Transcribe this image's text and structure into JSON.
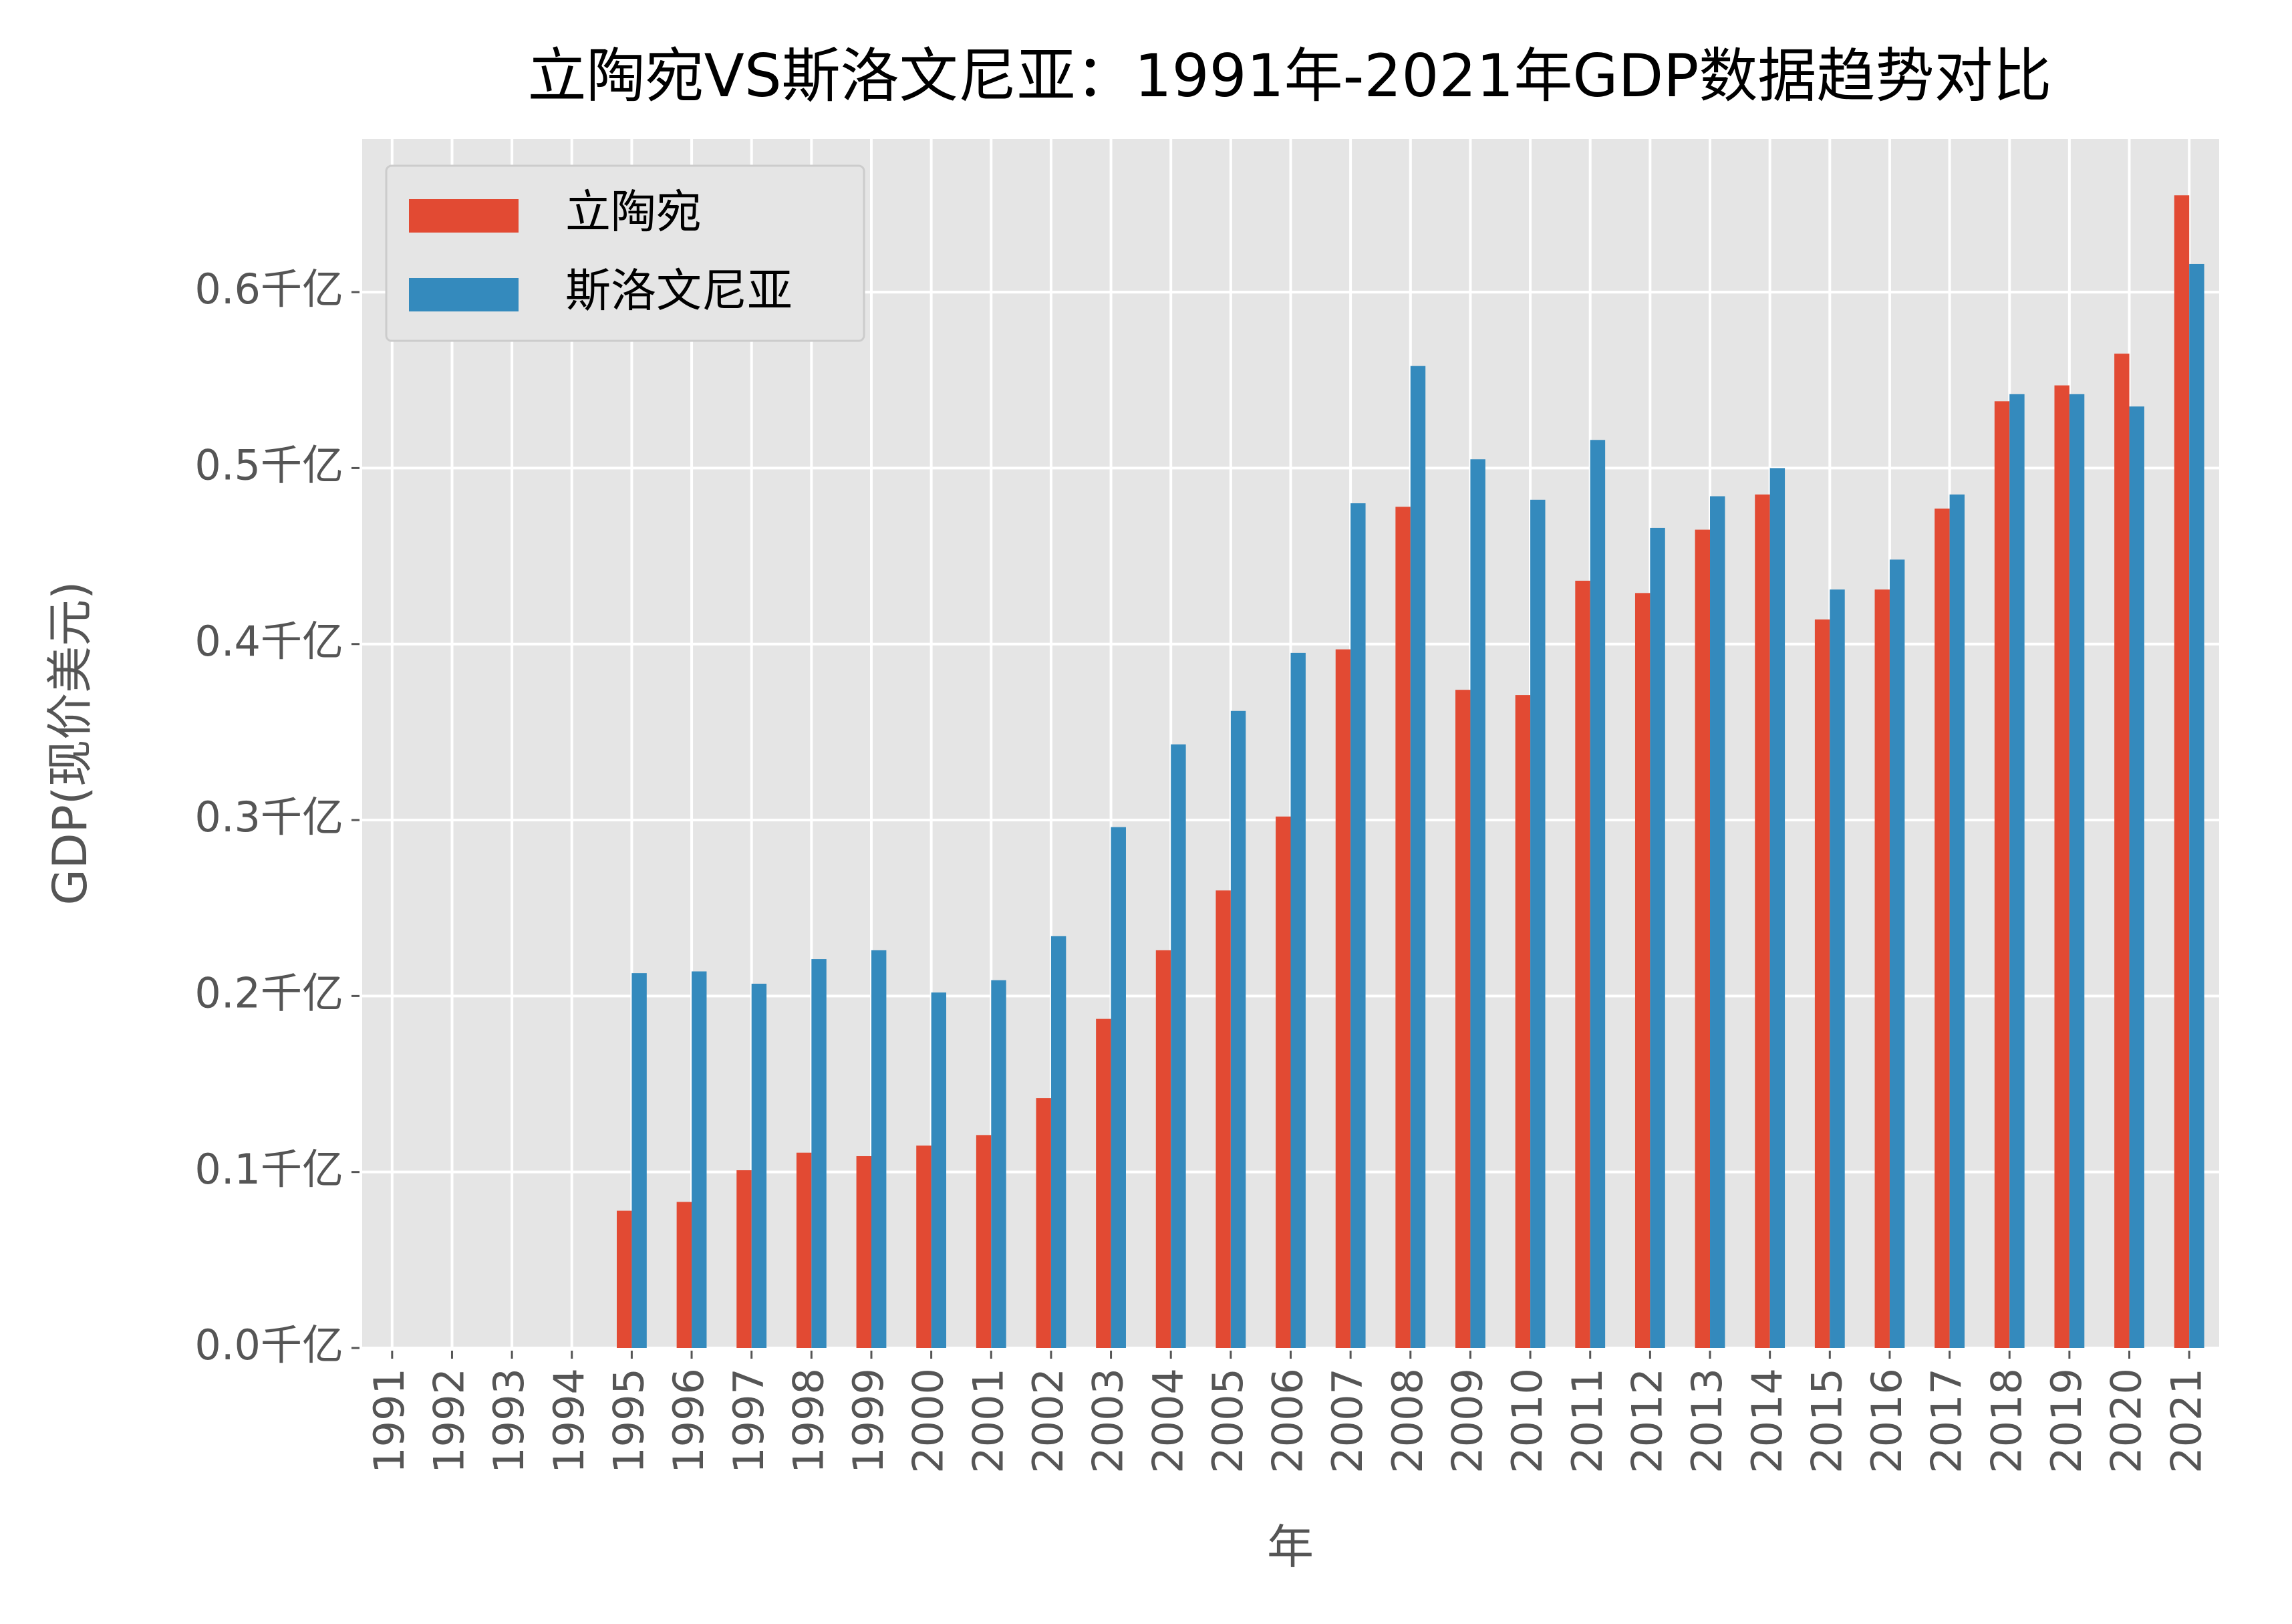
{
  "chart_data": {
    "type": "bar",
    "title": "立陶宛VS斯洛文尼亚：1991年-2021年GDP数据趋势对比",
    "x_label": "年",
    "y_label": "GDP(现价美元)",
    "categories": [
      "1991",
      "1992",
      "1993",
      "1994",
      "1995",
      "1996",
      "1997",
      "1998",
      "1999",
      "2000",
      "2001",
      "2002",
      "2003",
      "2004",
      "2005",
      "2006",
      "2007",
      "2008",
      "2009",
      "2010",
      "2011",
      "2012",
      "2013",
      "2014",
      "2015",
      "2016",
      "2017",
      "2018",
      "2019",
      "2020",
      "2021"
    ],
    "series": [
      {
        "name": "立陶宛",
        "color": "#e24a33",
        "values": [
          null,
          null,
          null,
          null,
          0.078,
          0.083,
          0.101,
          0.111,
          0.109,
          0.115,
          0.121,
          0.142,
          0.187,
          0.226,
          0.26,
          0.302,
          0.397,
          0.478,
          0.374,
          0.371,
          0.436,
          0.429,
          0.465,
          0.485,
          0.414,
          0.431,
          0.477,
          0.538,
          0.547,
          0.565,
          0.655
        ]
      },
      {
        "name": "斯洛文尼亚",
        "color": "#348abd",
        "values": [
          null,
          null,
          null,
          null,
          0.213,
          0.214,
          0.207,
          0.221,
          0.226,
          0.202,
          0.209,
          0.234,
          0.296,
          0.343,
          0.362,
          0.395,
          0.48,
          0.558,
          0.505,
          0.482,
          0.516,
          0.466,
          0.484,
          0.5,
          0.431,
          0.448,
          0.485,
          0.542,
          0.542,
          0.535,
          0.616
        ]
      }
    ],
    "ylim": [
      0,
      0.687
    ],
    "yticks": [
      {
        "value": 0,
        "label": "0.0千亿"
      },
      {
        "value": 0.1,
        "label": "0.1千亿"
      },
      {
        "value": 0.2,
        "label": "0.2千亿"
      },
      {
        "value": 0.3,
        "label": "0.3千亿"
      },
      {
        "value": 0.4,
        "label": "0.4千亿"
      },
      {
        "value": 0.5,
        "label": "0.5千亿"
      },
      {
        "value": 0.6,
        "label": "0.6千亿"
      }
    ],
    "grid": true,
    "legend": "upper left"
  }
}
